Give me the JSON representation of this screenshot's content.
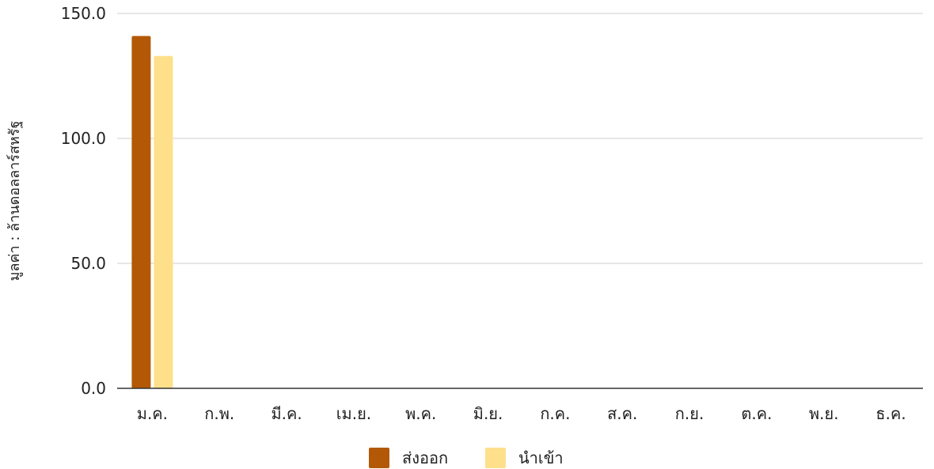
{
  "chart_data": {
    "type": "bar",
    "categories": [
      "ม.ค.",
      "ก.พ.",
      "มี.ค.",
      "เม.ย.",
      "พ.ค.",
      "มิ.ย.",
      "ก.ค.",
      "ส.ค.",
      "ก.ย.",
      "ต.ค.",
      "พ.ย.",
      "ธ.ค."
    ],
    "series": [
      {
        "name": "ส่งออก",
        "values": [
          141.0,
          0,
          0,
          0,
          0,
          0,
          0,
          0,
          0,
          0,
          0,
          0
        ],
        "color": "#b35806"
      },
      {
        "name": "นำเข้า",
        "values": [
          133.0,
          0,
          0,
          0,
          0,
          0,
          0,
          0,
          0,
          0,
          0,
          0
        ],
        "color": "#fee08b"
      }
    ],
    "ylabel": "มูลค่า : ล้านดอลลาร์สหรัฐ",
    "xlabel": "",
    "ylim": [
      0,
      150
    ],
    "yticks": [
      "0.0",
      "50.0",
      "100.0",
      "150.0"
    ],
    "grid": true,
    "legend": "bottom"
  }
}
